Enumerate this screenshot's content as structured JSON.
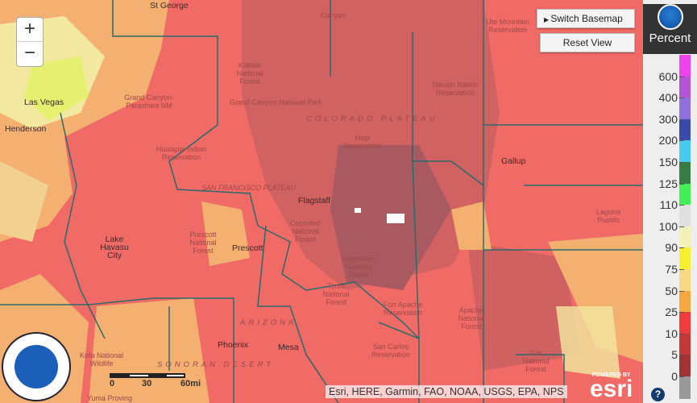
{
  "map": {
    "labels": {
      "st_george": "St George",
      "ute": "Ute Mountain Reservation",
      "canyon": "Canyon",
      "las_vegas": "Las Vegas",
      "henderson": "Henderson",
      "kaibab": "Kaibab National Forest",
      "grand_canyon": "Grand Canyon National Park",
      "parashant": "Grand Canyon-Parashant NM",
      "hualapai": "Hualapai Indian Reservation",
      "colorado_plateau": "COLORADO PLATEAU",
      "hopi": "Hopi Reservation",
      "navajo": "Navajo Nation Reservation",
      "gallup": "Gallup",
      "sf_plateau": "SAN FRANCISCO PLATEAU",
      "flagstaff": "Flagstaff",
      "coconino": "Coconino National Forest",
      "laguna": "Laguna Pueblo",
      "lake_havasu": "Lake Havasu City",
      "prescott_nf": "Prescott National Forest",
      "prescott": "Prescott",
      "sitgreaves": "Sitgreaves National Forest",
      "tonto": "Tonto National Forest",
      "fort_apache": "Fort Apache Reservation",
      "apache": "Apache National Forest",
      "arizona": "ARIZONA",
      "phoenix": "Phoenix",
      "mesa": "Mesa",
      "san_carlos": "San Carlos Reservation",
      "gila": "Gila National Forest",
      "sonoran": "SONORAN DESERT",
      "kofa": "Kofa National Wildlife",
      "yuma": "Yuma Proving"
    },
    "zoom_in": "+",
    "zoom_out": "−",
    "switch_basemap": "Switch Basemap",
    "reset_view": "Reset View",
    "scale": {
      "zero": "0",
      "mid": "30",
      "end": "60mi"
    },
    "attribution": "Esri, HERE, Garmin, FAO, NOAA, USGS, EPA, NPS",
    "esri_powered": "POWERED BY",
    "esri_logo": "esri",
    "noaa_logo": "NOAA"
  },
  "legend": {
    "title": "Percent",
    "ticks": [
      "600",
      "400",
      "300",
      "200",
      "150",
      "125",
      "110",
      "100",
      "90",
      "75",
      "50",
      "25",
      "10",
      "5",
      "0"
    ],
    "colors": [
      "#ee44ee",
      "#b455d8",
      "#9070e0",
      "#3a4aaa",
      "#48ccee",
      "#3a7d44",
      "#44ee55",
      "#e0e0e0",
      "#f2f2b8",
      "#f4f030",
      "#f8d884",
      "#f4a840",
      "#f03c3c",
      "#c43838",
      "#a03434",
      "#999999"
    ],
    "help": "?"
  }
}
